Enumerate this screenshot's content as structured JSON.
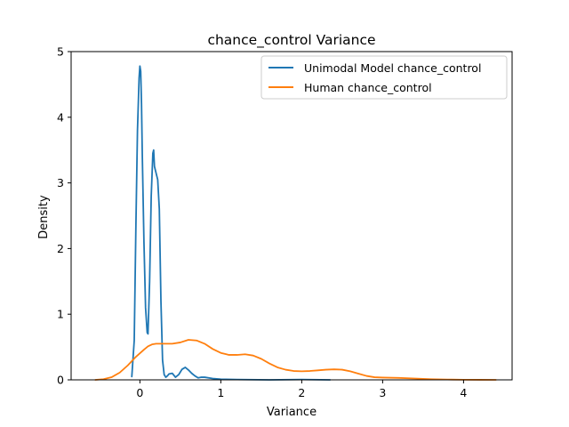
{
  "chart_data": {
    "type": "line",
    "title": "chance_control Variance",
    "xlabel": "Variance",
    "ylabel": "Density",
    "xlim": [
      -0.85,
      4.6
    ],
    "ylim": [
      0,
      5
    ],
    "xticks": [
      0,
      1,
      2,
      3,
      4
    ],
    "yticks": [
      0,
      1,
      2,
      3,
      4,
      5
    ],
    "grid": false,
    "legend_position": "top-right",
    "series": [
      {
        "name": "Unimodal Model chance_control",
        "color": "#1f77b4",
        "x": [
          -0.1,
          -0.07,
          -0.05,
          -0.03,
          -0.01,
          0.0,
          0.01,
          0.02,
          0.03,
          0.05,
          0.07,
          0.09,
          0.1,
          0.12,
          0.14,
          0.16,
          0.17,
          0.18,
          0.2,
          0.22,
          0.24,
          0.26,
          0.28,
          0.3,
          0.32,
          0.34,
          0.36,
          0.4,
          0.44,
          0.48,
          0.52,
          0.56,
          0.6,
          0.64,
          0.68,
          0.72,
          0.76,
          0.8,
          0.9,
          1.0,
          1.2,
          1.6,
          2.0,
          2.35
        ],
        "y": [
          0.05,
          0.6,
          2.3,
          3.8,
          4.6,
          4.78,
          4.7,
          4.2,
          3.4,
          2.1,
          1.1,
          0.72,
          0.7,
          1.5,
          2.8,
          3.45,
          3.5,
          3.25,
          3.15,
          3.05,
          2.6,
          1.2,
          0.3,
          0.08,
          0.04,
          0.06,
          0.09,
          0.1,
          0.04,
          0.08,
          0.16,
          0.19,
          0.15,
          0.1,
          0.06,
          0.03,
          0.04,
          0.04,
          0.02,
          0.01,
          0.005,
          0.0,
          0.005,
          0.0
        ]
      },
      {
        "name": "Human chance_control",
        "color": "#ff7f0e",
        "x": [
          -0.55,
          -0.45,
          -0.35,
          -0.25,
          -0.15,
          -0.05,
          0.05,
          0.1,
          0.15,
          0.2,
          0.3,
          0.4,
          0.5,
          0.6,
          0.7,
          0.8,
          0.9,
          1.0,
          1.1,
          1.2,
          1.3,
          1.4,
          1.5,
          1.6,
          1.7,
          1.8,
          1.9,
          2.0,
          2.1,
          2.2,
          2.3,
          2.4,
          2.5,
          2.6,
          2.7,
          2.8,
          2.9,
          3.0,
          3.2,
          3.4,
          3.6,
          3.8,
          4.0,
          4.2,
          4.4
        ],
        "y": [
          0.0,
          0.01,
          0.04,
          0.11,
          0.22,
          0.35,
          0.46,
          0.51,
          0.54,
          0.55,
          0.55,
          0.55,
          0.57,
          0.61,
          0.6,
          0.55,
          0.47,
          0.41,
          0.38,
          0.38,
          0.39,
          0.37,
          0.32,
          0.25,
          0.19,
          0.155,
          0.135,
          0.13,
          0.135,
          0.145,
          0.155,
          0.16,
          0.155,
          0.13,
          0.095,
          0.06,
          0.04,
          0.035,
          0.03,
          0.02,
          0.01,
          0.005,
          0.002,
          0.001,
          0.0
        ]
      }
    ]
  }
}
